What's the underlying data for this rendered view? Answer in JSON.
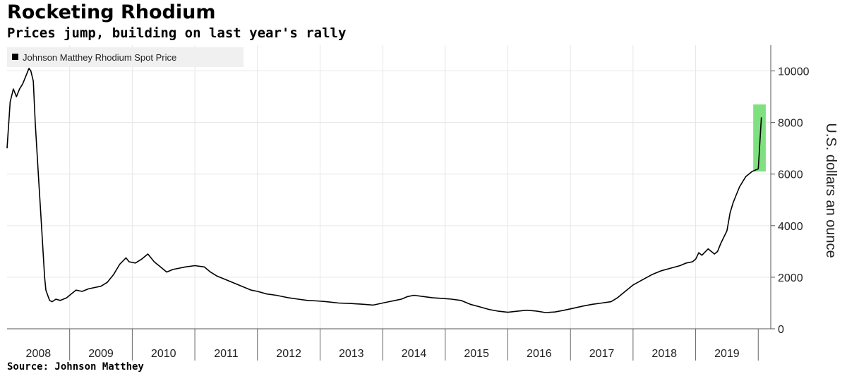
{
  "header": {
    "title": "Rocketing Rhodium",
    "subtitle": "Prices jump, building on last year's rally"
  },
  "footer": {
    "source": "Source: Johnson Matthey"
  },
  "colors": {
    "line": "#000000",
    "highlight": "#7fe07f",
    "grid": "#e6e6e6",
    "legend_bg": "#f0f0f0"
  },
  "chart_data": {
    "type": "line",
    "title": "Rocketing Rhodium",
    "subtitle": "Prices jump, building on last year's rally",
    "ylabel": "U.S. dollars an ounce",
    "xlabel": "",
    "ylim": [
      0,
      11000
    ],
    "y_ticks": [
      0,
      2000,
      4000,
      6000,
      8000,
      10000
    ],
    "x_range": [
      2008.0,
      2020.2
    ],
    "x_tick_labels": [
      "2008",
      "2009",
      "2010",
      "2011",
      "2012",
      "2013",
      "2014",
      "2015",
      "2016",
      "2017",
      "2018",
      "2019"
    ],
    "grid": true,
    "legend_position": "top-left",
    "y_axis_side": "right",
    "highlight": {
      "x_range": [
        2019.92,
        2020.12
      ],
      "y_range": [
        6100,
        8700
      ]
    },
    "series": [
      {
        "name": "Johnson Matthey Rhodium Spot Price",
        "x": [
          2008.0,
          2008.05,
          2008.1,
          2008.15,
          2008.2,
          2008.25,
          2008.3,
          2008.35,
          2008.38,
          2008.42,
          2008.45,
          2008.5,
          2008.55,
          2008.6,
          2008.62,
          2008.65,
          2008.68,
          2008.72,
          2008.78,
          2008.85,
          2008.9,
          2008.95,
          2009.0,
          2009.1,
          2009.2,
          2009.3,
          2009.4,
          2009.5,
          2009.6,
          2009.7,
          2009.8,
          2009.9,
          2009.95,
          2010.05,
          2010.15,
          2010.25,
          2010.3,
          2010.35,
          2010.45,
          2010.55,
          2010.65,
          2010.75,
          2010.85,
          2011.0,
          2011.15,
          2011.25,
          2011.35,
          2011.45,
          2011.6,
          2011.75,
          2011.9,
          2012.0,
          2012.15,
          2012.3,
          2012.5,
          2012.65,
          2012.8,
          2012.95,
          2013.1,
          2013.3,
          2013.5,
          2013.7,
          2013.85,
          2014.0,
          2014.1,
          2014.2,
          2014.3,
          2014.4,
          2014.5,
          2014.65,
          2014.8,
          2014.95,
          2015.1,
          2015.25,
          2015.4,
          2015.55,
          2015.7,
          2015.85,
          2016.0,
          2016.15,
          2016.3,
          2016.45,
          2016.6,
          2016.75,
          2016.9,
          2017.05,
          2017.2,
          2017.35,
          2017.5,
          2017.65,
          2017.75,
          2017.85,
          2018.0,
          2018.15,
          2018.3,
          2018.45,
          2018.6,
          2018.75,
          2018.85,
          2018.95,
          2019.0,
          2019.05,
          2019.1,
          2019.2,
          2019.3,
          2019.35,
          2019.4,
          2019.5,
          2019.55,
          2019.6,
          2019.65,
          2019.7,
          2019.75,
          2019.8,
          2019.85,
          2019.9,
          2019.95,
          2020.0,
          2020.05
        ],
        "values": [
          7000,
          8800,
          9300,
          9000,
          9300,
          9500,
          9800,
          10100,
          10000,
          9600,
          8000,
          6000,
          4000,
          2000,
          1500,
          1300,
          1100,
          1050,
          1150,
          1100,
          1150,
          1200,
          1300,
          1500,
          1450,
          1550,
          1600,
          1650,
          1800,
          2100,
          2500,
          2750,
          2600,
          2550,
          2700,
          2900,
          2750,
          2600,
          2400,
          2200,
          2300,
          2350,
          2400,
          2450,
          2400,
          2200,
          2050,
          1950,
          1800,
          1650,
          1500,
          1450,
          1350,
          1300,
          1200,
          1150,
          1100,
          1080,
          1050,
          1000,
          980,
          950,
          920,
          1000,
          1050,
          1100,
          1150,
          1250,
          1300,
          1250,
          1200,
          1180,
          1150,
          1100,
          950,
          850,
          750,
          680,
          640,
          680,
          720,
          690,
          630,
          650,
          720,
          800,
          880,
          950,
          1000,
          1050,
          1200,
          1400,
          1700,
          1900,
          2100,
          2250,
          2350,
          2450,
          2550,
          2600,
          2700,
          2950,
          2850,
          3100,
          2900,
          3000,
          3300,
          3800,
          4500,
          4900,
          5200,
          5500,
          5700,
          5900,
          6000,
          6100,
          6150,
          6200,
          8200
        ]
      }
    ]
  }
}
